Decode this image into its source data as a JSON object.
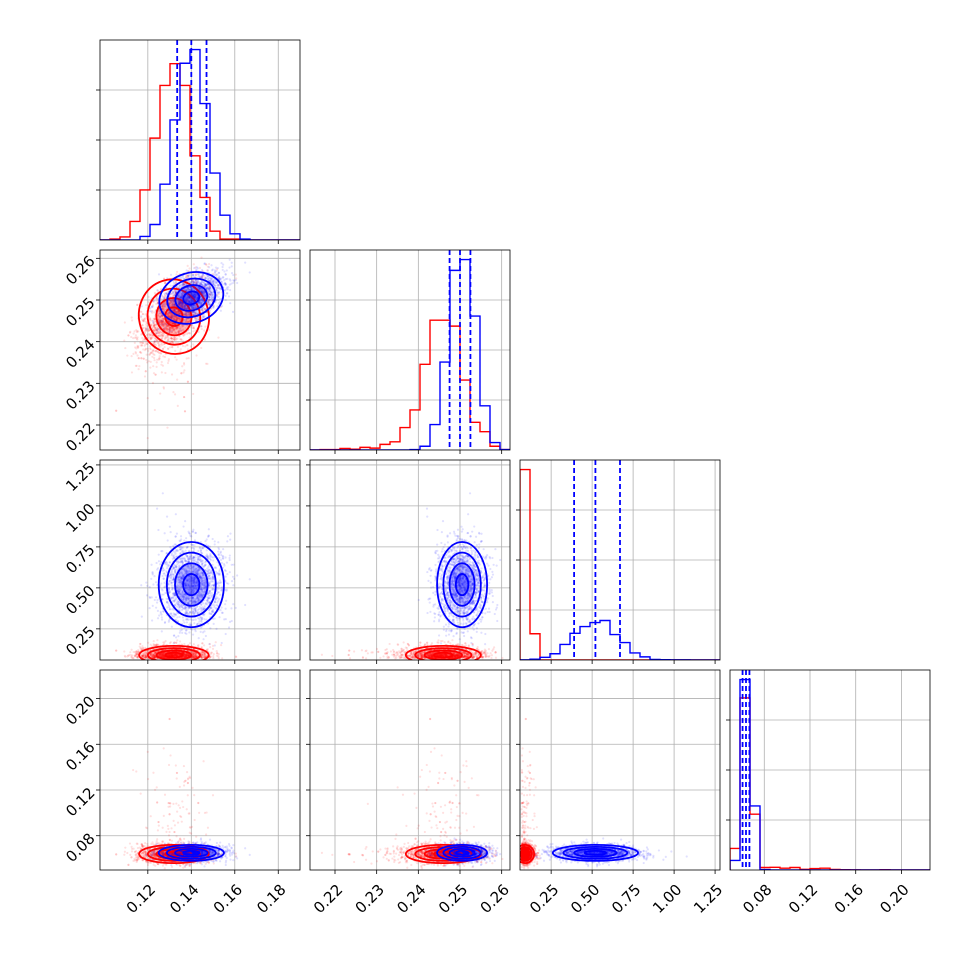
{
  "chart_data": {
    "type": "corner",
    "grid": true,
    "colors": {
      "red": "#ff0000",
      "blue": "#0000ff"
    },
    "parameters": [
      {
        "range": [
          0.098,
          0.19
        ],
        "ticks": [
          0.12,
          0.14,
          0.16,
          0.18
        ],
        "tick_labels": [
          "0.12",
          "0.14",
          "0.16",
          "0.18"
        ]
      },
      {
        "range": [
          0.214,
          0.262
        ],
        "ticks": [
          0.22,
          0.23,
          0.24,
          0.25,
          0.26
        ],
        "tick_labels": [
          "0.22",
          "0.23",
          "0.24",
          "0.25",
          "0.26"
        ]
      },
      {
        "range": [
          0.06,
          1.28
        ],
        "ticks": [
          0.25,
          0.5,
          0.75,
          1.0,
          1.25
        ],
        "tick_labels": [
          "0.25",
          "0.50",
          "0.75",
          "1.00",
          "1.25"
        ]
      },
      {
        "range": [
          0.05,
          0.225
        ],
        "ticks": [
          0.08,
          0.12,
          0.16,
          0.2
        ],
        "tick_labels": [
          "0.08",
          "0.12",
          "0.16",
          "0.20"
        ]
      }
    ],
    "series": [
      {
        "color": "#ff0000",
        "mean": [
          0.132,
          0.246,
          0.09,
          0.064
        ],
        "sd": [
          0.008,
          0.0045,
          0.028,
          0.004
        ]
      },
      {
        "color": "#0000ff",
        "mean": [
          0.14,
          0.2505,
          0.52,
          0.065
        ],
        "sd": [
          0.0075,
          0.003,
          0.13,
          0.0035
        ]
      }
    ],
    "quantiles_series": "blue",
    "quantiles": [
      [
        0.1335,
        0.14,
        0.147
      ],
      [
        0.2475,
        0.25,
        0.2525
      ],
      [
        0.39,
        0.52,
        0.67
      ],
      [
        0.061,
        0.064,
        0.067
      ]
    ]
  }
}
